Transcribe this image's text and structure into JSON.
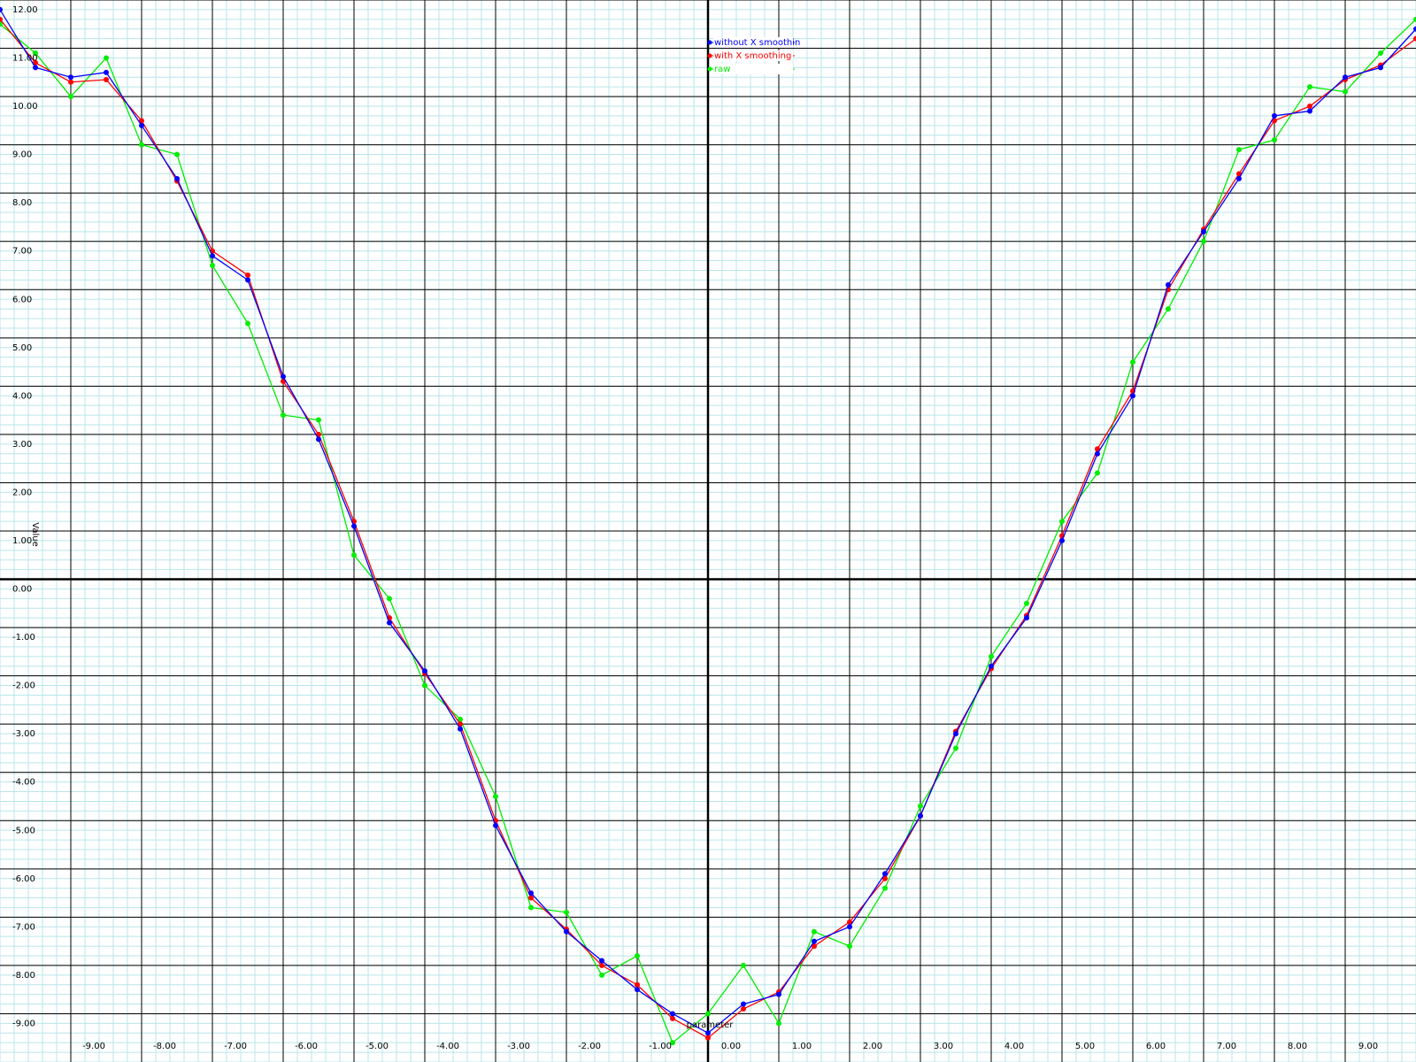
{
  "chart_data": {
    "type": "line",
    "x_label": "parameter",
    "y_label": "Value",
    "x": [
      -10,
      -9.5,
      -9,
      -8.5,
      -8,
      -7.5,
      -7,
      -6.5,
      -6,
      -5.5,
      -5,
      -4.5,
      -4,
      -3.5,
      -3,
      -2.5,
      -2,
      -1.5,
      -1,
      -0.5,
      0,
      0.5,
      1,
      1.5,
      2,
      2.5,
      3,
      3.5,
      4,
      4.5,
      5,
      5.5,
      6,
      6.5,
      7,
      7.5,
      8,
      8.5,
      9,
      9.5,
      10
    ],
    "series": [
      {
        "name": "without X smoothin",
        "color": "#0000ff",
        "values": [
          11.8,
          10.6,
          10.4,
          10.5,
          9.4,
          8.3,
          6.7,
          6.2,
          4.2,
          2.9,
          1.1,
          -0.9,
          -1.9,
          -3.1,
          -5.1,
          -6.5,
          -7.3,
          -7.9,
          -8.5,
          -9.0,
          -9.4,
          -8.8,
          -8.6,
          -7.5,
          -7.2,
          -6.1,
          -4.9,
          -3.2,
          -1.8,
          -0.8,
          0.8,
          2.6,
          3.8,
          6.1,
          7.2,
          8.3,
          9.6,
          9.7,
          10.4,
          10.6,
          11.4
        ]
      },
      {
        "name": "with X smoothing",
        "color": "#ff0000",
        "values": [
          11.6,
          10.7,
          10.3,
          10.35,
          9.5,
          8.25,
          6.8,
          6.3,
          4.1,
          3.0,
          1.2,
          -0.8,
          -1.95,
          -3.0,
          -5.0,
          -6.6,
          -7.25,
          -8.0,
          -8.4,
          -9.1,
          -9.5,
          -8.9,
          -8.55,
          -7.6,
          -7.1,
          -6.2,
          -4.9,
          -3.15,
          -1.85,
          -0.75,
          0.9,
          2.7,
          3.9,
          6.0,
          7.25,
          8.4,
          9.5,
          9.8,
          10.35,
          10.65,
          11.2
        ]
      },
      {
        "name": "raw",
        "color": "#00ee00",
        "values": [
          11.5,
          10.9,
          10.0,
          10.8,
          9.0,
          8.8,
          6.5,
          5.3,
          3.4,
          3.3,
          0.5,
          -0.4,
          -2.2,
          -2.9,
          -4.5,
          -6.8,
          -6.9,
          -8.2,
          -7.8,
          -9.6,
          -9.0,
          -8.0,
          -9.2,
          -7.3,
          -7.6,
          -6.4,
          -4.7,
          -3.5,
          -1.6,
          -0.5,
          1.2,
          2.2,
          4.5,
          5.6,
          7.0,
          8.9,
          9.1,
          10.2,
          10.1,
          10.9,
          11.6
        ]
      }
    ],
    "xlim": [
      -10,
      10
    ],
    "ylim": [
      -10,
      12
    ],
    "xticks": [
      {
        "value": -9,
        "label": "-9.00"
      },
      {
        "value": -8,
        "label": "-8.00"
      },
      {
        "value": -7,
        "label": "-7.00"
      },
      {
        "value": -6,
        "label": "-6.00"
      },
      {
        "value": -5,
        "label": "-5.00"
      },
      {
        "value": -4,
        "label": "-4.00"
      },
      {
        "value": -3,
        "label": "-3.00"
      },
      {
        "value": -2,
        "label": "-2.00"
      },
      {
        "value": -1,
        "label": "-1.00"
      },
      {
        "value": 0,
        "label": "0.00"
      },
      {
        "value": 1,
        "label": "1.00"
      },
      {
        "value": 2,
        "label": "2.00"
      },
      {
        "value": 3,
        "label": "3.00"
      },
      {
        "value": 4,
        "label": "4.00"
      },
      {
        "value": 5,
        "label": "5.00"
      },
      {
        "value": 6,
        "label": "6.00"
      },
      {
        "value": 7,
        "label": "7.00"
      },
      {
        "value": 8,
        "label": "8.00"
      },
      {
        "value": 9,
        "label": "9.00"
      }
    ],
    "yticks": [
      {
        "value": -9,
        "label": "-9.00"
      },
      {
        "value": -8,
        "label": "-8.00"
      },
      {
        "value": -7,
        "label": "-7.00"
      },
      {
        "value": -6,
        "label": "-6.00"
      },
      {
        "value": -5,
        "label": "-5.00"
      },
      {
        "value": -4,
        "label": "-4.00"
      },
      {
        "value": -3,
        "label": "-3.00"
      },
      {
        "value": -2,
        "label": "-2.00"
      },
      {
        "value": -1,
        "label": "-1.00"
      },
      {
        "value": 0,
        "label": "0.00"
      },
      {
        "value": 1,
        "label": "1.00"
      },
      {
        "value": 2,
        "label": "2.00"
      },
      {
        "value": 3,
        "label": "3.00"
      },
      {
        "value": 4,
        "label": "4.00"
      },
      {
        "value": 5,
        "label": "5.00"
      },
      {
        "value": 6,
        "label": "6.00"
      },
      {
        "value": 7,
        "label": "7.00"
      },
      {
        "value": 8,
        "label": "8.00"
      },
      {
        "value": 9,
        "label": "9.00"
      },
      {
        "value": 10,
        "label": "10.00"
      },
      {
        "value": 11,
        "label": "11.00"
      },
      {
        "value": 12,
        "label": "12.00"
      }
    ],
    "grid": true
  }
}
